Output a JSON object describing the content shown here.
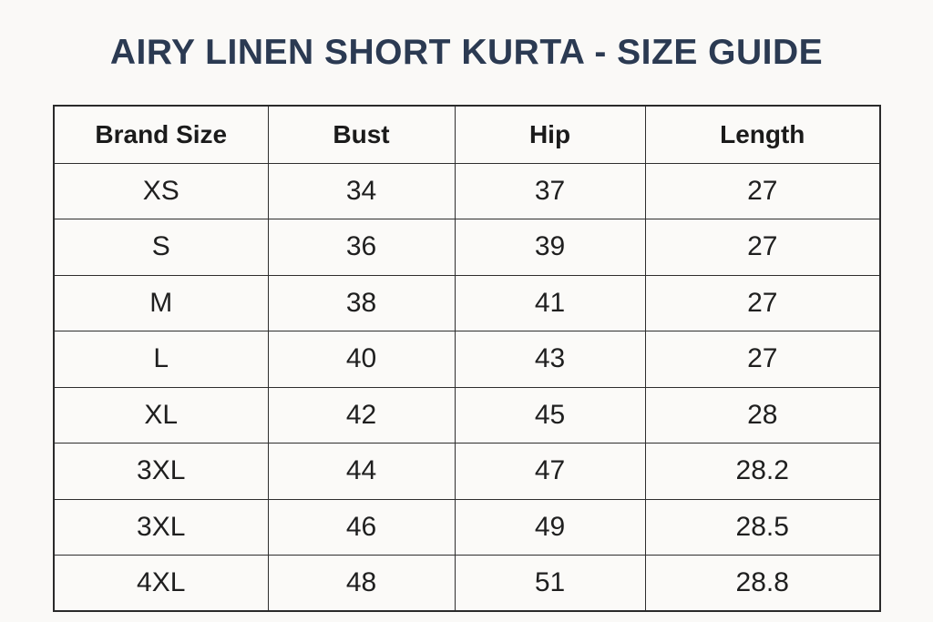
{
  "page": {
    "title": "AIRY LINEN SHORT KURTA - SIZE GUIDE",
    "title_color": "#2b3a52",
    "background_color": "#faf9f7",
    "border_color": "#2e2e2e",
    "text_color": "#1f1f1f"
  },
  "size_table": {
    "columns": [
      "Brand Size",
      "Bust",
      "Hip",
      "Length"
    ],
    "rows": [
      [
        "XS",
        "34",
        "37",
        "27"
      ],
      [
        "S",
        "36",
        "39",
        "27"
      ],
      [
        "M",
        "38",
        "41",
        "27"
      ],
      [
        "L",
        "40",
        "43",
        "27"
      ],
      [
        "XL",
        "42",
        "45",
        "28"
      ],
      [
        "3XL",
        "44",
        "47",
        "28.2"
      ],
      [
        "3XL",
        "46",
        "49",
        "28.5"
      ],
      [
        "4XL",
        "48",
        "51",
        "28.8"
      ]
    ]
  },
  "chart_data": {
    "type": "table",
    "title": "AIRY LINEN SHORT KURTA - SIZE GUIDE",
    "columns": [
      "Brand Size",
      "Bust",
      "Hip",
      "Length"
    ],
    "rows": [
      [
        "XS",
        34,
        37,
        27
      ],
      [
        "S",
        36,
        39,
        27
      ],
      [
        "M",
        38,
        41,
        27
      ],
      [
        "L",
        40,
        43,
        27
      ],
      [
        "XL",
        42,
        45,
        28
      ],
      [
        "3XL",
        44,
        47,
        28.2
      ],
      [
        "3XL",
        46,
        49,
        28.5
      ],
      [
        "4XL",
        48,
        51,
        28.8
      ]
    ]
  }
}
